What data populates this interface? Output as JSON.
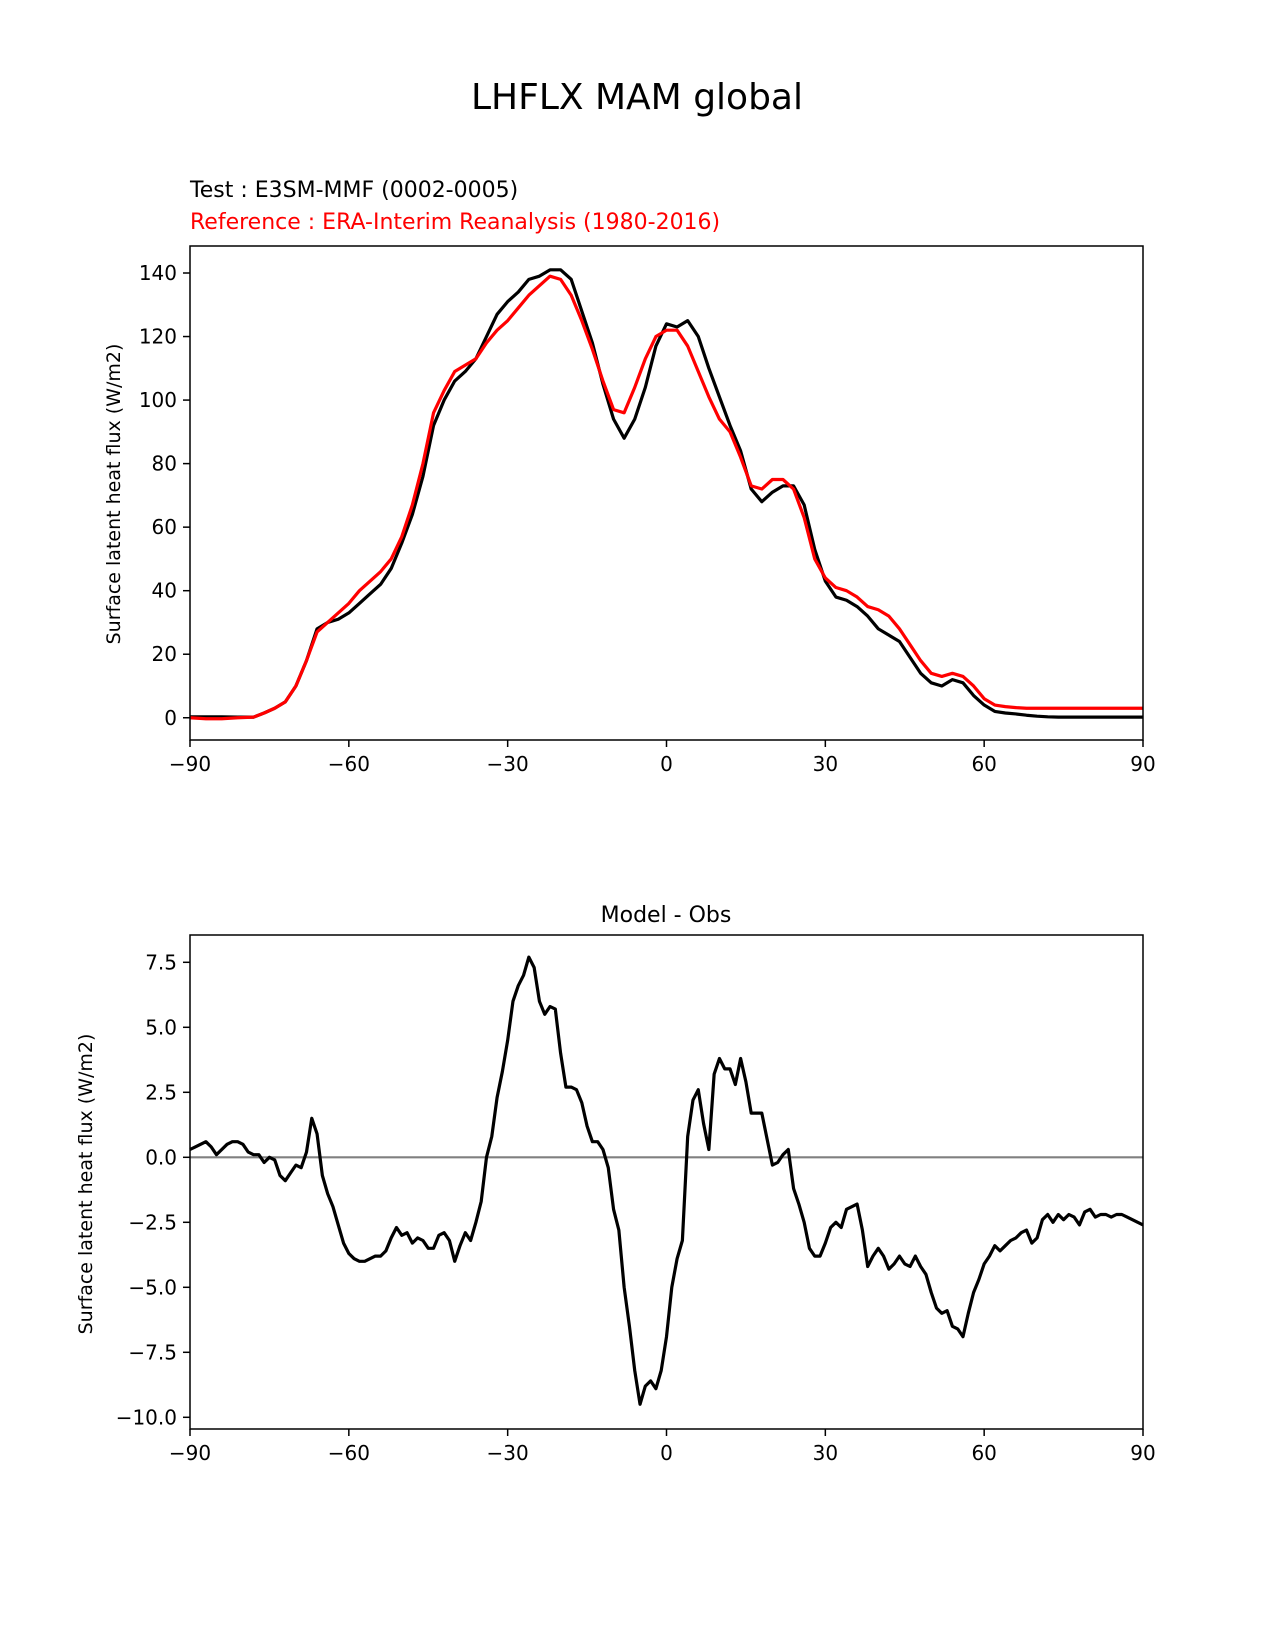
{
  "figure_title": "LHFLX MAM global",
  "chart_data": [
    {
      "type": "line",
      "title_test": "Test : E3SM-MMF (0002-0005)",
      "title_reference": "Reference : ERA-Interim Reanalysis (1980-2016)",
      "xlabel": "",
      "ylabel": "Surface latent heat flux (W/m2)",
      "xlim": [
        -90,
        90
      ],
      "ylim": [
        -7,
        148.5
      ],
      "xticks": [
        -90,
        -60,
        -30,
        0,
        30,
        60,
        90
      ],
      "xtick_labels": [
        "−90",
        "−60",
        "−30",
        "0",
        "30",
        "60",
        "90"
      ],
      "yticks": [
        0,
        20,
        40,
        60,
        80,
        100,
        120,
        140
      ],
      "ytick_labels": [
        "0",
        "20",
        "40",
        "60",
        "80",
        "100",
        "120",
        "140"
      ],
      "grid": false,
      "series": [
        {
          "name": "Test : E3SM-MMF (0002-0005)",
          "color": "#000000",
          "x": [
            -90,
            -87,
            -84,
            -81,
            -78,
            -76,
            -74,
            -72,
            -70,
            -68,
            -66,
            -64,
            -62,
            -60,
            -58,
            -56,
            -54,
            -52,
            -50,
            -48,
            -46,
            -44,
            -42,
            -40,
            -38,
            -36,
            -34,
            -32,
            -30,
            -28,
            -26,
            -24,
            -22,
            -20,
            -18,
            -16,
            -14,
            -12,
            -10,
            -8,
            -6,
            -4,
            -2,
            0,
            2,
            4,
            6,
            8,
            10,
            12,
            14,
            16,
            18,
            20,
            22,
            24,
            26,
            28,
            30,
            32,
            34,
            36,
            38,
            40,
            42,
            44,
            46,
            48,
            50,
            52,
            54,
            56,
            58,
            60,
            62,
            64,
            66,
            68,
            70,
            72,
            74,
            76,
            78,
            80,
            82,
            84,
            86,
            88,
            90
          ],
          "y": [
            0.3,
            0.3,
            0.3,
            0.2,
            0.2,
            1.5,
            3,
            5,
            10,
            18,
            28,
            30,
            31,
            33,
            36,
            39,
            42,
            47,
            55,
            64,
            76,
            92,
            100,
            106,
            109,
            113,
            120,
            127,
            131,
            134,
            138,
            139,
            141,
            141,
            138,
            128,
            118,
            105,
            94,
            88,
            94,
            104,
            117,
            124,
            123,
            125,
            120,
            110,
            101,
            92,
            84,
            72,
            68,
            71,
            73,
            73,
            67,
            53,
            43,
            38,
            37,
            35,
            32,
            28,
            26,
            24,
            19,
            14,
            11,
            10,
            12,
            11,
            7,
            4,
            2,
            1.5,
            1.2,
            0.8,
            0.5,
            0.3,
            0.2,
            0.2,
            0.2,
            0.2,
            0.2,
            0.2,
            0.2,
            0.2,
            0.2
          ]
        },
        {
          "name": "Reference : ERA-Interim Reanalysis (1980-2016)",
          "color": "#ff0000",
          "x": [
            -90,
            -87,
            -84,
            -81,
            -78,
            -76,
            -74,
            -72,
            -70,
            -68,
            -66,
            -64,
            -62,
            -60,
            -58,
            -56,
            -54,
            -52,
            -50,
            -48,
            -46,
            -44,
            -42,
            -40,
            -38,
            -36,
            -34,
            -32,
            -30,
            -28,
            -26,
            -24,
            -22,
            -20,
            -18,
            -16,
            -14,
            -12,
            -10,
            -8,
            -6,
            -4,
            -2,
            0,
            2,
            4,
            6,
            8,
            10,
            12,
            14,
            16,
            18,
            20,
            22,
            24,
            26,
            28,
            30,
            32,
            34,
            36,
            38,
            40,
            42,
            44,
            46,
            48,
            50,
            52,
            54,
            56,
            58,
            60,
            62,
            64,
            66,
            68,
            70,
            72,
            74,
            76,
            78,
            80,
            82,
            84,
            86,
            88,
            90
          ],
          "y": [
            0,
            -0.3,
            -0.3,
            0,
            0.2,
            1.5,
            3,
            5,
            10,
            18,
            27,
            30,
            33,
            36,
            40,
            43,
            46,
            50,
            57,
            67,
            80,
            96,
            103,
            109,
            111,
            113,
            118,
            122,
            125,
            129,
            133,
            136,
            139,
            138,
            133,
            125,
            116,
            106,
            97,
            96,
            104,
            113,
            120,
            122,
            122,
            117,
            109,
            101,
            94,
            90,
            82,
            73,
            72,
            75,
            75,
            72,
            63,
            50,
            44,
            41,
            40,
            38,
            35,
            34,
            32,
            28,
            23,
            18,
            14,
            13,
            14,
            13,
            10,
            6,
            4,
            3.5,
            3.2,
            3,
            3,
            3,
            3,
            3,
            3,
            3,
            3,
            3,
            3,
            3,
            3
          ]
        }
      ]
    },
    {
      "type": "line",
      "title": "Model - Obs",
      "xlabel": "",
      "ylabel": "Surface latent heat flux (W/m2)",
      "xlim": [
        -90,
        90
      ],
      "ylim": [
        -10.45,
        8.55
      ],
      "xticks": [
        -90,
        -60,
        -30,
        0,
        30,
        60,
        90
      ],
      "xtick_labels": [
        "−90",
        "−60",
        "−30",
        "0",
        "30",
        "60",
        "90"
      ],
      "yticks": [
        -10.0,
        -7.5,
        -5.0,
        -2.5,
        0.0,
        2.5,
        5.0,
        7.5
      ],
      "ytick_labels": [
        "−10.0",
        "−7.5",
        "−5.0",
        "−2.5",
        "0.0",
        "2.5",
        "5.0",
        "7.5"
      ],
      "grid": false,
      "zero_line_color": "#808080",
      "series": [
        {
          "name": "Model - Obs",
          "color": "#000000",
          "x": [
            -90,
            -89,
            -88,
            -87,
            -86,
            -85,
            -84,
            -83,
            -82,
            -81,
            -80,
            -79,
            -78,
            -77,
            -76,
            -75,
            -74,
            -73,
            -72,
            -71,
            -70,
            -69,
            -68,
            -67,
            -66,
            -65,
            -64,
            -63,
            -62,
            -61,
            -60,
            -59,
            -58,
            -57,
            -56,
            -55,
            -54,
            -53,
            -52,
            -51,
            -50,
            -49,
            -48,
            -47,
            -46,
            -45,
            -44,
            -43,
            -42,
            -41,
            -40,
            -39,
            -38,
            -37,
            -36,
            -35,
            -34,
            -33,
            -32,
            -31,
            -30,
            -29,
            -28,
            -27,
            -26,
            -25,
            -24,
            -23,
            -22,
            -21,
            -20,
            -19,
            -18,
            -17,
            -16,
            -15,
            -14,
            -13,
            -12,
            -11,
            -10,
            -9,
            -8,
            -7,
            -6,
            -5,
            -4,
            -3,
            -2,
            -1,
            0,
            1,
            2,
            3,
            4,
            5,
            6,
            7,
            8,
            9,
            10,
            11,
            12,
            13,
            14,
            15,
            16,
            17,
            18,
            19,
            20,
            21,
            22,
            23,
            24,
            25,
            26,
            27,
            28,
            29,
            30,
            31,
            32,
            33,
            34,
            35,
            36,
            37,
            38,
            39,
            40,
            41,
            42,
            43,
            44,
            45,
            46,
            47,
            48,
            49,
            50,
            51,
            52,
            53,
            54,
            55,
            56,
            57,
            58,
            59,
            60,
            61,
            62,
            63,
            64,
            65,
            66,
            67,
            68,
            69,
            70,
            71,
            72,
            73,
            74,
            75,
            76,
            77,
            78,
            79,
            80,
            81,
            82,
            83,
            84,
            85,
            86,
            87,
            88,
            89,
            90
          ],
          "y": [
            0.3,
            0.4,
            0.5,
            0.6,
            0.4,
            0.1,
            0.3,
            0.5,
            0.6,
            0.6,
            0.5,
            0.2,
            0.1,
            0.1,
            -0.2,
            0,
            -0.1,
            -0.7,
            -0.9,
            -0.6,
            -0.3,
            -0.4,
            0.2,
            1.5,
            0.9,
            -0.7,
            -1.4,
            -1.9,
            -2.6,
            -3.3,
            -3.7,
            -3.9,
            -4.0,
            -4.0,
            -3.9,
            -3.8,
            -3.8,
            -3.6,
            -3.1,
            -2.7,
            -3.0,
            -2.9,
            -3.3,
            -3.1,
            -3.2,
            -3.5,
            -3.5,
            -3.0,
            -2.9,
            -3.2,
            -4.0,
            -3.4,
            -2.9,
            -3.2,
            -2.5,
            -1.7,
            0,
            0.8,
            2.3,
            3.3,
            4.5,
            6.0,
            6.6,
            7.0,
            7.7,
            7.3,
            6.0,
            5.5,
            5.8,
            5.7,
            4.0,
            2.7,
            2.7,
            2.6,
            2.1,
            1.2,
            0.6,
            0.6,
            0.3,
            -0.4,
            -2.0,
            -2.8,
            -5.0,
            -6.5,
            -8.2,
            -9.5,
            -8.8,
            -8.6,
            -8.9,
            -8.2,
            -6.9,
            -5.0,
            -3.9,
            -3.2,
            0.8,
            2.2,
            2.6,
            1.3,
            0.3,
            3.2,
            3.8,
            3.4,
            3.4,
            2.8,
            3.8,
            2.9,
            1.7,
            1.7,
            1.7,
            0.7,
            -0.3,
            -0.2,
            0.1,
            0.3,
            -1.2,
            -1.8,
            -2.5,
            -3.5,
            -3.8,
            -3.8,
            -3.3,
            -2.7,
            -2.5,
            -2.7,
            -2.0,
            -1.9,
            -1.8,
            -2.8,
            -4.2,
            -3.8,
            -3.5,
            -3.8,
            -4.3,
            -4.1,
            -3.8,
            -4.1,
            -4.2,
            -3.8,
            -4.2,
            -4.5,
            -5.2,
            -5.8,
            -6.0,
            -5.9,
            -6.5,
            -6.6,
            -6.9,
            -6.0,
            -5.2,
            -4.7,
            -4.1,
            -3.8,
            -3.4,
            -3.6,
            -3.4,
            -3.2,
            -3.1,
            -2.9,
            -2.8,
            -3.3,
            -3.1,
            -2.4,
            -2.2,
            -2.5,
            -2.2,
            -2.4,
            -2.2,
            -2.3,
            -2.6,
            -2.1,
            -2.0,
            -2.3,
            -2.2,
            -2.2,
            -2.3,
            -2.2,
            -2.2,
            -2.3,
            -2.4,
            -2.5,
            -2.6
          ]
        }
      ]
    }
  ]
}
